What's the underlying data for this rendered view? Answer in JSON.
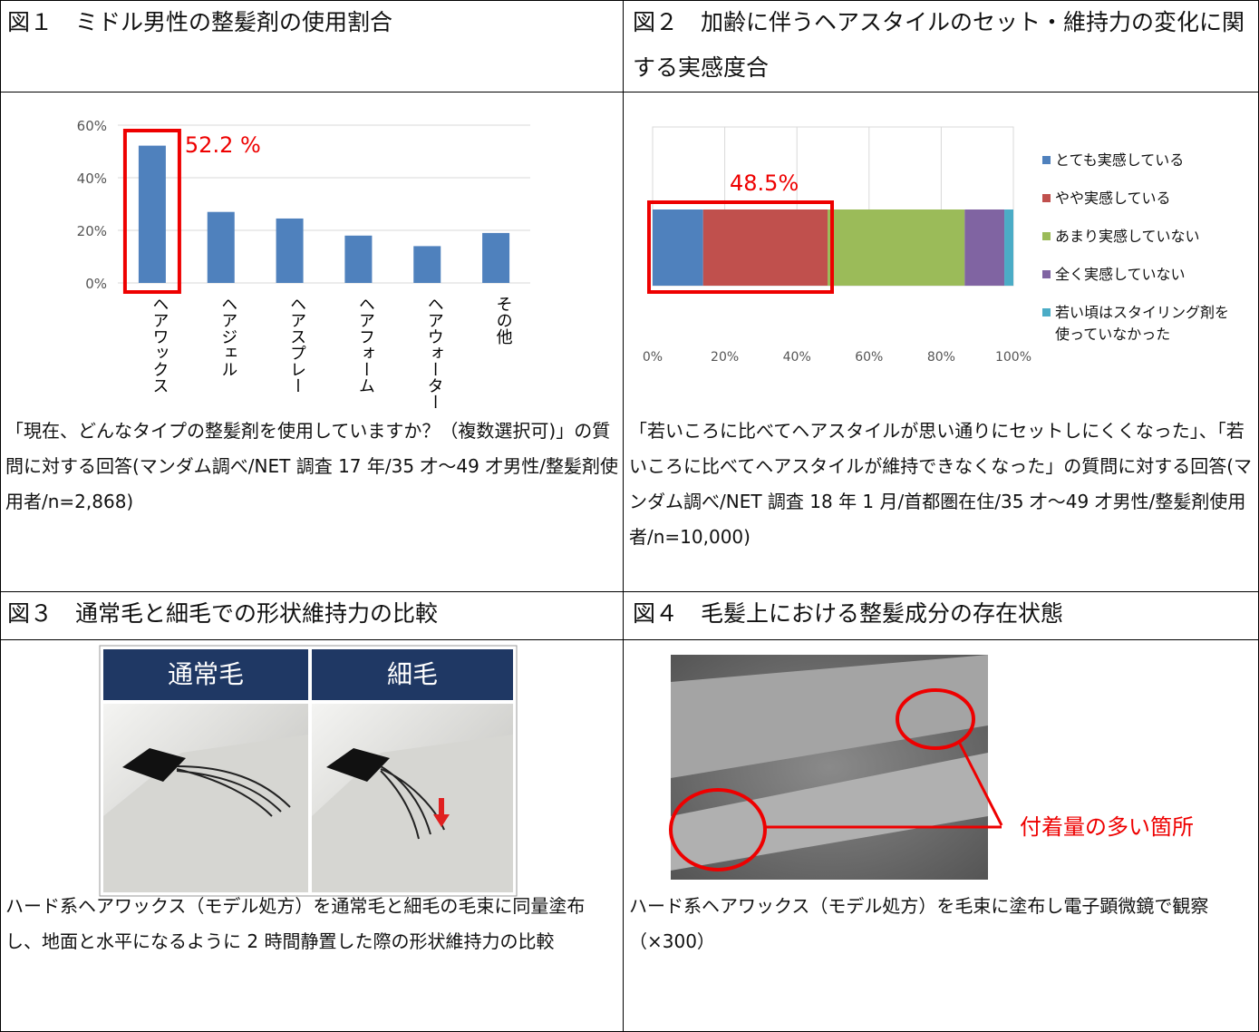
{
  "figures": [
    {
      "title": "図１　ミドル男性の整髪剤の使用割合",
      "caption": "「現在、どんなタイプの整髪剤を使用していますか？（複数選択可)」の質問に対する回答(マンダム調べ/NET 調査 17 年/35 才～49 才男性/整髪剤使用者/n=2,868)"
    },
    {
      "title": "図２　加齢に伴うヘアスタイルのセット・維持力の変化に関する実感度合",
      "caption": "「若いころに比べてヘアスタイルが思い通りにセットしにくくなった」、「若いころに比べてヘアスタイルが維持できなくなった」の質問に対する回答(マンダム調べ/NET 調査 18 年 1 月/首都圏在住/35 才～49 才男性/整髪剤使用者/n=10,000)"
    },
    {
      "title": "図３　通常毛と細毛での形状維持力の比較",
      "caption": "ハード系ヘアワックス（モデル処方）を通常毛と細毛の毛束に同量塗布し、地面と水平になるように 2 時間静置した際の形状維持力の比較"
    },
    {
      "title": "図４　毛髪上における整髪成分の存在状態",
      "caption": "ハード系ヘアワックス（モデル処方）を毛束に塗布し電子顕微鏡で観察（×300）"
    }
  ],
  "chart_data": [
    {
      "type": "bar",
      "categories": [
        "ヘアワックス",
        "ヘアジェル",
        "ヘアスプレー",
        "ヘアフォーム",
        "ヘアウォーター",
        "その他"
      ],
      "values": [
        52.2,
        27,
        24.5,
        18,
        14,
        19
      ],
      "color": "#4f81bd",
      "ylim": [
        0,
        60
      ],
      "yticks": [
        {
          "value": 0,
          "label": "0%"
        },
        {
          "value": 20,
          "label": "20%"
        },
        {
          "value": 40,
          "label": "40%"
        },
        {
          "value": 60,
          "label": "60%"
        }
      ],
      "grid": true,
      "annotation": "52.2 %"
    },
    {
      "type": "stacked-bar-horizontal",
      "series": [
        {
          "name": "とても実感している",
          "color": "#4f81bd",
          "values": [
            14
          ]
        },
        {
          "name": "やや実感している",
          "color": "#c0504d",
          "values": [
            34.5
          ]
        },
        {
          "name": "あまり実感していない",
          "color": "#9bbb59",
          "values": [
            38
          ]
        },
        {
          "name": "全く実感していない",
          "color": "#8064a2",
          "values": [
            11
          ]
        },
        {
          "name": "若い頃はスタイリング剤を使っていなかった",
          "color": "#4bacc6",
          "values": [
            2.5
          ]
        }
      ],
      "xlim": [
        0,
        100
      ],
      "xticks": [
        {
          "value": 0,
          "label": "0%"
        },
        {
          "value": 20,
          "label": "20%"
        },
        {
          "value": 40,
          "label": "40%"
        },
        {
          "value": 60,
          "label": "60%"
        },
        {
          "value": 80,
          "label": "80%"
        },
        {
          "value": 100,
          "label": "100%"
        }
      ],
      "grid": true,
      "annotation": "48.5%",
      "legend": "right"
    }
  ],
  "photo_labels": [
    "通常毛",
    "細毛"
  ],
  "photo_annotation": "付着量の多い箇所"
}
